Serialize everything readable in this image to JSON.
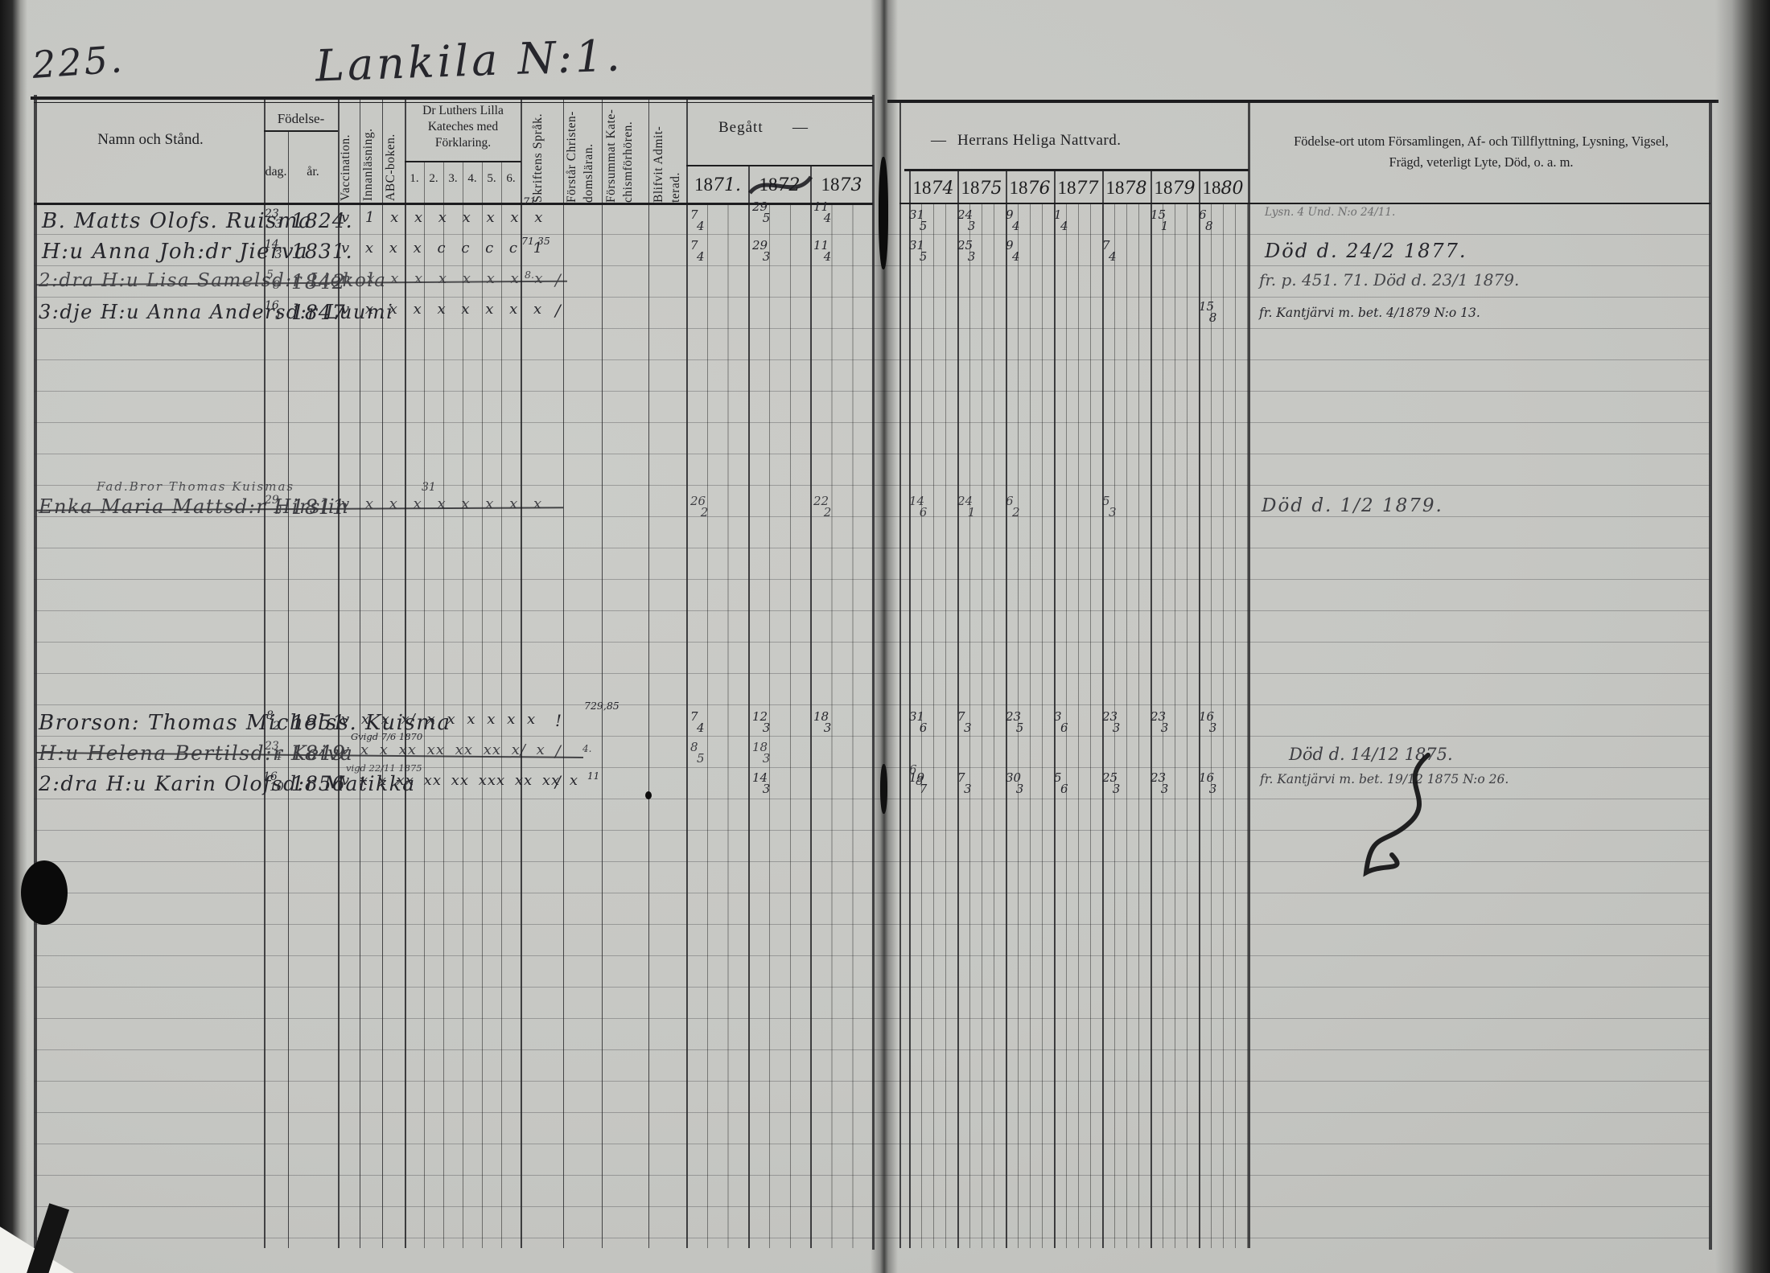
{
  "page": {
    "number": "225.",
    "title": "Lankila N:1."
  },
  "headers": {
    "name": "Namn och Stånd.",
    "birth": "Födelse-",
    "day": "dag.",
    "year": "år.",
    "vaccination": "Vaccination.",
    "reading": "Innanläsning.",
    "abc": "ABC-boken.",
    "catechism": "Dr Luthers Lilla Kateches med Förklaring.",
    "catechism_cols": [
      "1.",
      "2.",
      "3.",
      "4.",
      "5.",
      "6."
    ],
    "scripture": "Skriftens Språk.",
    "understands1": "Förstår Christen-",
    "understands2": "domsläran.",
    "missed1": "Försummat Kate-",
    "missed2": "chismförhören.",
    "admitted1": "Blifvit Admit-",
    "admitted2": "terad.",
    "begatt": "Begått",
    "dash": "—",
    "communion": "Herrans Heliga Nattvard.",
    "notes1": "Födelse-ort utom Församlingen, Af- och Tillflyttning, Lysning, Vigsel,",
    "notes2": "Frägd, veterligt Lyte, Död, o. a. m."
  },
  "years_left": [
    {
      "p": "18",
      "s": "71."
    },
    {
      "p": "18",
      "s": "72"
    },
    {
      "p": "18",
      "s": "73"
    }
  ],
  "years_right": [
    {
      "p": "18",
      "s": "74"
    },
    {
      "p": "18",
      "s": "75"
    },
    {
      "p": "18",
      "s": "76"
    },
    {
      "p": "18",
      "s": "77"
    },
    {
      "p": "18",
      "s": "78"
    },
    {
      "p": "18",
      "s": "79"
    },
    {
      "p": "18",
      "s": "80"
    }
  ],
  "entries": [
    {
      "name": "B. Matts Olofs. Ruisma",
      "dag": "23/3",
      "ar": "1824.",
      "marks": "v 1 x x x x x x x",
      "skrift": "71.",
      "comm": {
        "y71": "7/4",
        "y72": "29/5",
        "y73": "11/4",
        "y74": "31/5",
        "y75": "24/3",
        "y76": "9/4",
        "y77": "1/4",
        "y78": "15/1",
        "y80": "6/8"
      },
      "note": "Lysn. 4 Und. N:o 24/11."
    },
    {
      "name": "H:u Anna Joh:dr Jierva",
      "dag": "14/3",
      "ar": "1831.",
      "marks": "v x x x c c c c 1",
      "skrift": "71,35",
      "comm": {
        "y71": "7/4",
        "y72": "29/3",
        "y73": "11/4",
        "y74": "31/5",
        "y75": "25/3",
        "y76": "9/4",
        "y78": "7/4"
      },
      "note": "Död d. 24/2 1877."
    },
    {
      "name": "2:dra H:u Lisa Samelsd:r Liekola",
      "dag": "5/8",
      "ar": "1842",
      "marks": "n x x x x x x x x",
      "skrift": "8.",
      "adm": "/",
      "comm": {},
      "note": "fr. p. 451. 71.   Död d. 23/1 1879."
    },
    {
      "name": "3:dje H:u Anna Andersd:r Luumi",
      "dag": "16/1",
      "ar": "1847",
      "marks": "v x x x x x x x x",
      "adm": "/",
      "comm": {
        "y80": "15/8"
      },
      "note": "fr. Kantjärvi m. bet. 4/1879 N:o 13."
    },
    {
      "name": "Fad.Bror Thomas Kuismas"
    },
    {
      "name": "Enka Maria Mattsd:r Hirslin",
      "dag": "29/3",
      "ar": "1811",
      "marks": "v x x x x x x x x",
      "skrift": "31",
      "comm": {
        "y71": "26/2",
        "y73": "22/2",
        "y74": "14/6",
        "y75": "24/1",
        "y76": "6/2",
        "y78": "5/3"
      },
      "note": "Död d. 1/2 1879."
    },
    {
      "name": "Brorson: Thomas Michelss. Kuisma",
      "dag": "8/2",
      "ar": "1851",
      "marks": "v x x x/ x x x x x x",
      "skrift": "729,85",
      "adm": "!",
      "subnote": "Gvigd 7/6 1870",
      "comm": {
        "y71": "7/4",
        "y72": "12/3",
        "y73": "18/3",
        "y74": "31/6",
        "y75": "7/3",
        "y76": "23/5",
        "y77": "3/6",
        "y78": "23/3",
        "y79": "23/3",
        "y80": "16/3"
      }
    },
    {
      "name": "H:u Helena Bertilsd:r Keiva",
      "dag": "23/4",
      "ar": "1849",
      "marks": "v x x xx xx xx xx x/ x",
      "skrift": "4.",
      "adm": "/",
      "subnote": "vigd 22/11 1875",
      "comm": {
        "y71": "8/5",
        "y72": "18/3",
        "y74": "6/8"
      },
      "note": "Död d. 14/12 1875.",
      "note2": "fr. Kantjärvi m. bet. 19/12 1875 N:o 26."
    },
    {
      "name": "2:dra H:u Karin Olofsd:r Matikka",
      "dag": "16/10",
      "ar": "1856",
      "marks": "v x x xx xx xx xxx xx xx x",
      "skrift": "11",
      "adm": "/",
      "comm": {
        "y72": "14/3",
        "y74": "19/7",
        "y75": "7/3",
        "y76": "30/3",
        "y77": "5/6",
        "y78": "25/3",
        "y79": "23/3",
        "y80": "16/3"
      }
    }
  ]
}
